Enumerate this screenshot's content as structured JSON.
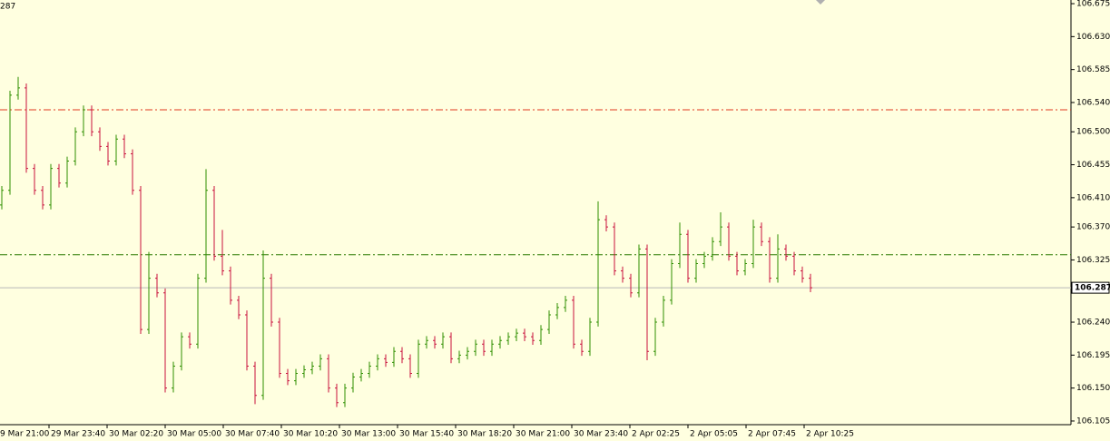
{
  "chart_data": {
    "type": "ohlc",
    "header_fragment": "287",
    "up_color": "#2f8f00",
    "down_color": "#c8103c",
    "ylim": [
      106.1,
      106.68
    ],
    "yticks": [
      {
        "value": 106.675,
        "label": "106.675"
      },
      {
        "value": 106.63,
        "label": "106.630"
      },
      {
        "value": 106.585,
        "label": "106.585"
      },
      {
        "value": 106.54,
        "label": "106.540"
      },
      {
        "value": 106.5,
        "label": "106.500"
      },
      106.455,
      {
        "value": 106.41,
        "label": "106.410"
      },
      {
        "value": 106.37,
        "label": "106.370"
      },
      106.325,
      {
        "value": 106.24,
        "label": "106.240"
      },
      106.195,
      {
        "value": 106.15,
        "label": "106.150"
      },
      106.105
    ],
    "x_labels": [
      "9 Mar 21:00",
      "29 Mar 23:40",
      "30 Mar 02:20",
      "30 Mar 05:00",
      "30 Mar 07:40",
      "30 Mar 10:20",
      "30 Mar 13:00",
      "30 Mar 15:40",
      "30 Mar 18:20",
      "30 Mar 21:00",
      "30 Mar 23:40",
      "2 Apr 02:25",
      "2 Apr 05:05",
      "2 Apr 07:45",
      "2 Apr 10:25"
    ],
    "levels": [
      {
        "value": 106.53,
        "color": "#e03a20"
      },
      {
        "value": 106.332,
        "color": "#2a7a00"
      }
    ],
    "current_price": 106.287,
    "bars": [
      [
        106.4,
        106.426,
        106.394,
        106.42
      ],
      [
        106.42,
        106.556,
        106.414,
        106.55
      ],
      [
        106.55,
        106.575,
        106.544,
        106.56
      ],
      [
        106.56,
        106.566,
        106.444,
        106.45
      ],
      [
        106.45,
        106.456,
        106.414,
        106.42
      ],
      [
        106.42,
        106.426,
        106.394,
        106.4
      ],
      [
        106.4,
        106.456,
        106.394,
        106.45
      ],
      [
        106.45,
        106.456,
        106.424,
        106.43
      ],
      [
        106.43,
        106.466,
        106.424,
        106.46
      ],
      [
        106.46,
        106.506,
        106.454,
        106.5
      ],
      [
        106.5,
        106.536,
        106.494,
        106.53
      ],
      [
        106.53,
        106.536,
        106.494,
        106.5
      ],
      [
        106.5,
        106.506,
        106.474,
        106.48
      ],
      [
        106.48,
        106.486,
        106.454,
        106.46
      ],
      [
        106.46,
        106.496,
        106.454,
        106.49
      ],
      [
        106.49,
        106.496,
        106.464,
        106.47
      ],
      [
        106.47,
        106.476,
        106.414,
        106.42
      ],
      [
        106.42,
        106.426,
        106.224,
        106.23
      ],
      [
        106.23,
        106.336,
        106.224,
        106.3
      ],
      [
        106.3,
        106.306,
        106.274,
        106.28
      ],
      [
        106.28,
        106.286,
        106.144,
        106.15
      ],
      [
        106.15,
        106.186,
        106.144,
        106.18
      ],
      [
        106.18,
        106.226,
        106.174,
        106.22
      ],
      [
        106.22,
        106.226,
        106.204,
        106.21
      ],
      [
        106.21,
        106.306,
        106.204,
        106.3
      ],
      [
        106.3,
        106.449,
        106.294,
        106.42
      ],
      [
        106.42,
        106.426,
        106.324,
        106.33
      ],
      [
        106.33,
        106.366,
        106.304,
        106.31
      ],
      [
        106.31,
        106.316,
        106.264,
        106.27
      ],
      [
        106.27,
        106.276,
        106.244,
        106.25
      ],
      [
        106.25,
        106.256,
        106.174,
        106.18
      ],
      [
        106.18,
        106.186,
        106.128,
        106.14
      ],
      [
        106.14,
        106.338,
        106.134,
        106.3
      ],
      [
        106.3,
        106.306,
        106.234,
        106.24
      ],
      [
        106.24,
        106.246,
        106.164,
        106.17
      ],
      [
        106.17,
        106.176,
        106.154,
        106.16
      ],
      [
        106.16,
        106.176,
        106.154,
        106.17
      ],
      [
        106.17,
        106.181,
        106.164,
        106.175
      ],
      [
        106.175,
        106.186,
        106.169,
        106.18
      ],
      [
        106.18,
        106.196,
        106.174,
        106.19
      ],
      [
        106.19,
        106.196,
        106.144,
        106.15
      ],
      [
        106.15,
        106.156,
        106.124,
        106.13
      ],
      [
        106.13,
        106.156,
        106.124,
        106.15
      ],
      [
        106.15,
        106.171,
        106.144,
        106.165
      ],
      [
        106.165,
        106.176,
        106.159,
        106.17
      ],
      [
        106.17,
        106.186,
        106.164,
        106.18
      ],
      [
        106.18,
        106.196,
        106.174,
        106.19
      ],
      [
        106.19,
        106.196,
        106.179,
        106.185
      ],
      [
        106.185,
        106.206,
        106.179,
        106.2
      ],
      [
        106.2,
        106.206,
        106.184,
        106.19
      ],
      [
        106.19,
        106.196,
        106.164,
        106.17
      ],
      [
        106.17,
        106.216,
        106.164,
        106.21
      ],
      [
        106.21,
        106.221,
        106.204,
        106.215
      ],
      [
        106.215,
        106.221,
        106.204,
        106.21
      ],
      [
        106.21,
        106.226,
        106.204,
        106.22
      ],
      [
        106.22,
        106.226,
        106.184,
        106.19
      ],
      [
        106.19,
        106.201,
        106.184,
        106.195
      ],
      [
        106.195,
        106.206,
        106.189,
        106.2
      ],
      [
        106.2,
        106.216,
        106.194,
        106.21
      ],
      [
        106.21,
        106.216,
        106.194,
        106.2
      ],
      [
        106.2,
        106.216,
        106.194,
        106.21
      ],
      [
        106.21,
        106.221,
        106.204,
        106.215
      ],
      [
        106.215,
        106.226,
        106.209,
        106.22
      ],
      [
        106.22,
        106.231,
        106.214,
        106.225
      ],
      [
        106.225,
        106.231,
        106.214,
        106.22
      ],
      [
        106.22,
        106.226,
        106.209,
        106.215
      ],
      [
        106.215,
        106.236,
        106.209,
        106.23
      ],
      [
        106.23,
        106.256,
        106.224,
        106.25
      ],
      [
        106.25,
        106.266,
        106.244,
        106.26
      ],
      [
        106.26,
        106.276,
        106.254,
        106.27
      ],
      [
        106.27,
        106.276,
        106.204,
        106.21
      ],
      [
        106.21,
        106.216,
        106.194,
        106.2
      ],
      [
        106.2,
        106.246,
        106.194,
        106.24
      ],
      [
        106.24,
        106.405,
        106.234,
        106.38
      ],
      [
        106.38,
        106.386,
        106.364,
        106.37
      ],
      [
        106.37,
        106.376,
        106.304,
        106.31
      ],
      [
        106.31,
        106.316,
        106.294,
        106.3
      ],
      [
        106.3,
        106.306,
        106.274,
        106.28
      ],
      [
        106.28,
        106.346,
        106.274,
        106.34
      ],
      [
        106.34,
        106.346,
        106.188,
        106.2
      ],
      [
        106.2,
        106.246,
        106.194,
        106.24
      ],
      [
        106.24,
        106.276,
        106.234,
        106.27
      ],
      [
        106.27,
        106.326,
        106.264,
        106.32
      ],
      [
        106.32,
        106.376,
        106.314,
        106.36
      ],
      [
        106.36,
        106.366,
        106.294,
        106.3
      ],
      [
        106.3,
        106.326,
        106.294,
        106.32
      ],
      [
        106.32,
        106.336,
        106.314,
        106.33
      ],
      [
        106.33,
        106.356,
        106.324,
        106.35
      ],
      [
        106.35,
        106.39,
        106.344,
        106.37
      ],
      [
        106.37,
        106.376,
        106.324,
        106.33
      ],
      [
        106.33,
        106.336,
        106.304,
        106.31
      ],
      [
        106.31,
        106.326,
        106.304,
        106.32
      ],
      [
        106.32,
        106.38,
        106.314,
        106.37
      ],
      [
        106.37,
        106.376,
        106.344,
        106.35
      ],
      [
        106.35,
        106.356,
        106.294,
        106.3
      ],
      [
        106.3,
        106.36,
        106.294,
        106.34
      ],
      [
        106.34,
        106.346,
        106.324,
        106.33
      ],
      [
        106.33,
        106.336,
        106.304,
        106.31
      ],
      [
        106.31,
        106.316,
        106.294,
        106.3
      ],
      [
        106.3,
        106.306,
        106.281,
        106.287
      ]
    ]
  }
}
